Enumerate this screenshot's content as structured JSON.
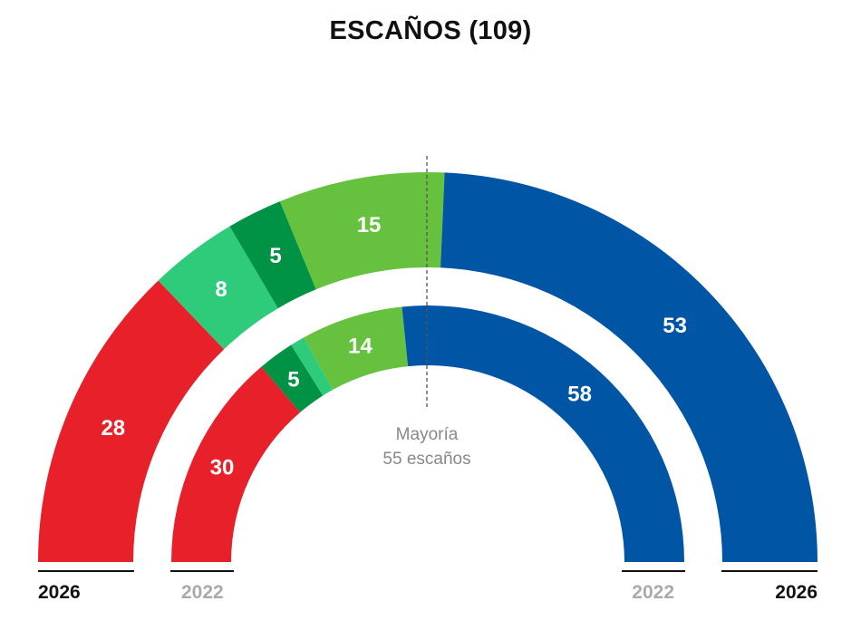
{
  "chart_data": {
    "type": "parliament-hemicycle",
    "title": "ESCAÑOS (109)",
    "total_seats": 109,
    "majority": {
      "line1": "Mayoría",
      "line2": "55 escaños",
      "seats": 55
    },
    "rings": [
      {
        "year": "2026",
        "position": "outer",
        "segments": [
          {
            "value": 28,
            "color": "#e8202a"
          },
          {
            "value": 8,
            "color": "#2ecc7a"
          },
          {
            "value": 5,
            "color": "#009245"
          },
          {
            "value": 15,
            "color": "#66c23e"
          },
          {
            "value": 53,
            "color": "#0055a5"
          }
        ]
      },
      {
        "year": "2022",
        "position": "inner",
        "segments": [
          {
            "value": 30,
            "color": "#e8202a"
          },
          {
            "value": 5,
            "color": "#009245"
          },
          {
            "value": 2,
            "color": "#2ecc7a",
            "show_label": false
          },
          {
            "value": 14,
            "color": "#66c23e"
          },
          {
            "value": 58,
            "color": "#0055a5"
          }
        ]
      }
    ]
  },
  "colors": {
    "year_2026": "#111111",
    "year_2022": "#aaaaaa"
  }
}
